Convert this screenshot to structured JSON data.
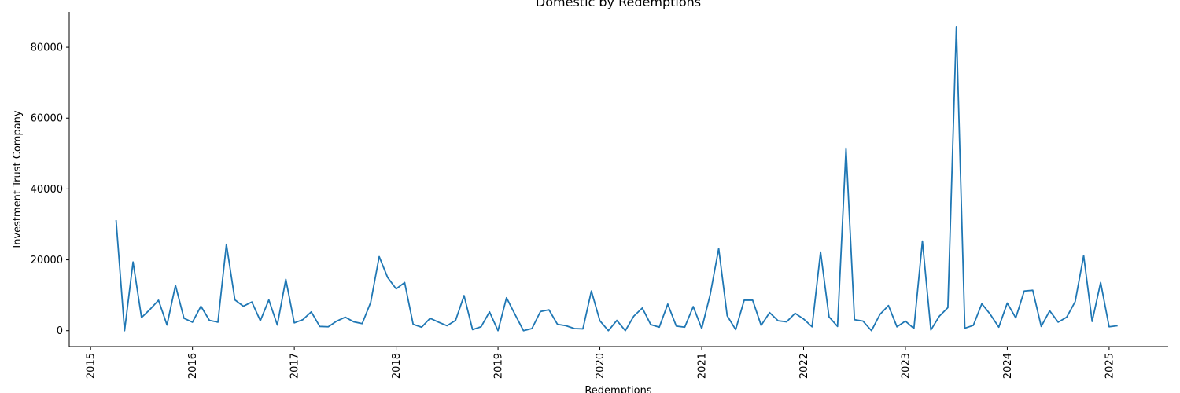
{
  "chart_data": {
    "type": "line",
    "title": "Domestic by Redemptions",
    "xlabel": "Redemptions",
    "ylabel": "Investment Trust Company",
    "ylim": [
      -4500,
      90000
    ],
    "xlim": [
      2014.79,
      2025.58
    ],
    "y_ticks": [
      0,
      20000,
      40000,
      60000,
      80000
    ],
    "y_tick_labels": [
      "0",
      "20000",
      "40000",
      "60000",
      "80000"
    ],
    "x_ticks": [
      2015,
      2016,
      2017,
      2018,
      2019,
      2020,
      2021,
      2022,
      2023,
      2024,
      2025
    ],
    "x_tick_labels": [
      "2015",
      "2016",
      "2017",
      "2018",
      "2019",
      "2020",
      "2021",
      "2022",
      "2023",
      "2024",
      "2025"
    ],
    "grid": false,
    "legend": "none",
    "color": "#1f77b4",
    "series": [
      {
        "x": [
          "2015-04",
          "2015-05",
          "2015-06",
          "2015-07",
          "2015-08",
          "2015-09",
          "2015-10",
          "2015-11",
          "2015-12",
          "2016-01",
          "2016-02",
          "2016-03",
          "2016-04",
          "2016-05",
          "2016-06",
          "2016-07",
          "2016-08",
          "2016-09",
          "2016-10",
          "2016-11",
          "2016-12",
          "2017-01",
          "2017-02",
          "2017-03",
          "2017-04",
          "2017-05",
          "2017-06",
          "2017-07",
          "2017-08",
          "2017-09",
          "2017-10",
          "2017-11",
          "2017-12",
          "2018-01",
          "2018-02",
          "2018-03",
          "2018-04",
          "2018-05",
          "2018-06",
          "2018-07",
          "2018-08",
          "2018-09",
          "2018-10",
          "2018-11",
          "2018-12",
          "2019-01",
          "2019-02",
          "2019-03",
          "2019-04",
          "2019-05",
          "2019-06",
          "2019-07",
          "2019-08",
          "2019-09",
          "2019-10",
          "2019-11",
          "2019-12",
          "2020-01",
          "2020-02",
          "2020-03",
          "2020-04",
          "2020-05",
          "2020-06",
          "2020-07",
          "2020-08",
          "2020-09",
          "2020-10",
          "2020-11",
          "2020-12",
          "2021-01",
          "2021-02",
          "2021-03",
          "2021-04",
          "2021-05",
          "2021-06",
          "2021-07",
          "2021-08",
          "2021-09",
          "2021-10",
          "2021-11",
          "2021-12",
          "2022-01",
          "2022-02",
          "2022-03",
          "2022-04",
          "2022-05",
          "2022-06",
          "2022-07",
          "2022-08",
          "2022-09",
          "2022-10",
          "2022-11",
          "2022-12",
          "2023-01",
          "2023-02",
          "2023-03",
          "2023-04",
          "2023-05",
          "2023-06",
          "2023-07",
          "2023-08",
          "2023-09",
          "2023-10",
          "2023-11",
          "2023-12",
          "2024-01",
          "2024-02",
          "2024-03",
          "2024-04",
          "2024-05",
          "2024-06",
          "2024-07",
          "2024-08",
          "2024-09",
          "2024-10",
          "2024-11",
          "2024-12",
          "2025-01",
          "2025-02"
        ],
        "values": [
          31200,
          0,
          19400,
          3700,
          6000,
          8600,
          1600,
          12800,
          3500,
          2400,
          6900,
          2900,
          2400,
          24400,
          8700,
          6900,
          8100,
          2800,
          8700,
          1600,
          14500,
          2200,
          3100,
          5300,
          1200,
          1100,
          2700,
          3800,
          2500,
          2000,
          8000,
          20900,
          15000,
          11800,
          13600,
          1800,
          1000,
          3500,
          2400,
          1400,
          2900,
          9900,
          300,
          1100,
          5300,
          0,
          9300,
          4600,
          0,
          600,
          5400,
          5900,
          1800,
          1400,
          600,
          500,
          11200,
          2800,
          0,
          2900,
          0,
          4100,
          6400,
          1700,
          1000,
          7500,
          1300,
          1000,
          6800,
          600,
          10200,
          23200,
          4200,
          300,
          8600,
          8600,
          1500,
          5100,
          2800,
          2500,
          4900,
          3300,
          1100,
          22200,
          3900,
          1200,
          51500,
          3100,
          2700,
          0,
          4600,
          7100,
          1100,
          2700,
          600,
          25300,
          200,
          4100,
          6500,
          85800,
          700,
          1500,
          7600,
          4600,
          1000,
          7800,
          3600,
          11200,
          11400,
          1200,
          5600,
          2400,
          3800,
          8200,
          21200,
          2600,
          13600,
          1100,
          1400
        ]
      }
    ]
  }
}
